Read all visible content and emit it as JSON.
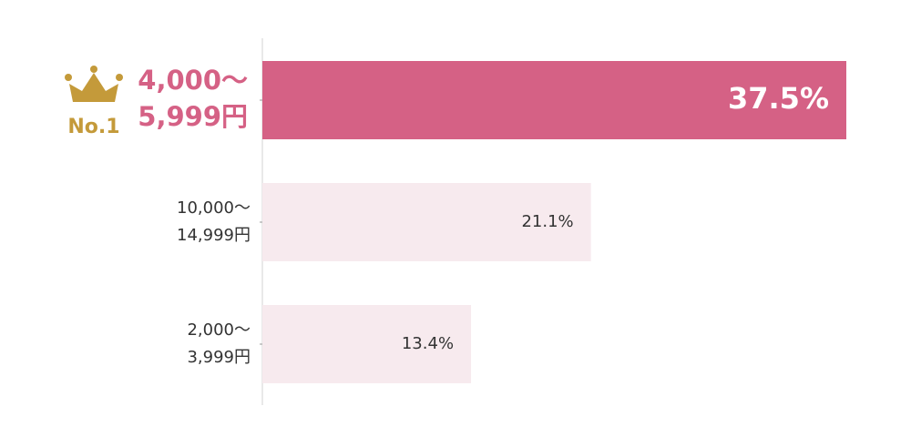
{
  "chart_data": {
    "type": "hbar",
    "categories": [
      [
        "4,000～",
        "5,999円"
      ],
      [
        "10,000～",
        "14,999円"
      ],
      [
        "2,000～",
        "3,999円"
      ]
    ],
    "values": [
      37.5,
      21.1,
      13.4
    ],
    "value_labels": [
      "37.5%",
      "21.1%",
      "13.4%"
    ],
    "colors": [
      "#d56185",
      "#f7eaee",
      "#f7eaee"
    ],
    "badge": "No.1"
  }
}
